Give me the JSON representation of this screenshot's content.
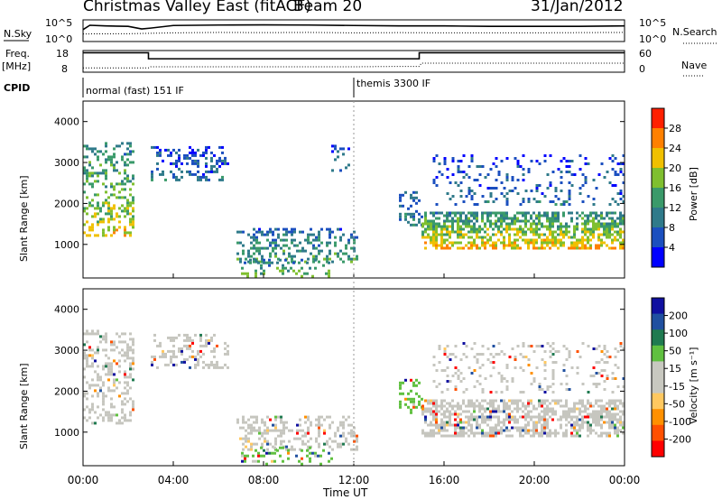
{
  "header": {
    "station": "Christmas Valley East (fitACF)",
    "beam": "Beam 20",
    "date": "31/Jan/2012"
  },
  "colors": {
    "power_scale": [
      "#0000ff",
      "#1b4fbf",
      "#2f7a8a",
      "#3a9a6a",
      "#7fbf2f",
      "#f0c000",
      "#ff8000",
      "#ff2000"
    ],
    "velocity_scale": [
      "#ff0000",
      "#ff5000",
      "#ff9000",
      "#ffc860",
      "#c8c8c0",
      "#c8c8c0",
      "#60c040",
      "#1f7a50",
      "#2050a0",
      "#1010a0"
    ],
    "velocity_ground": "#c6c6bf"
  },
  "chart_data": [
    {
      "type": "line",
      "panel": "noise",
      "left_label": "N.Sky",
      "right_label": "N.Search",
      "left_ticks": [
        "10^5",
        "10^0"
      ],
      "right_ticks": [
        "10^5",
        "10^0"
      ],
      "series": [
        {
          "name": "N.Sky",
          "style": "solid",
          "x": [
            0.0,
            0.3,
            1.0,
            2.0,
            2.6,
            3.0,
            4.0,
            6.0,
            8.0,
            10.0,
            12.0,
            14.0,
            16.0,
            18.0,
            20.0,
            22.0,
            24.0
          ],
          "y": [
            0.55,
            0.75,
            0.72,
            0.7,
            0.58,
            0.62,
            0.74,
            0.76,
            0.77,
            0.76,
            0.74,
            0.72,
            0.72,
            0.7,
            0.7,
            0.7,
            0.72
          ]
        },
        {
          "name": "N.Search",
          "style": "dotted",
          "x": [
            0,
            2,
            4,
            6,
            8,
            10,
            12,
            14,
            16,
            18,
            20,
            22,
            24
          ],
          "y": [
            0.35,
            0.36,
            0.4,
            0.42,
            0.41,
            0.42,
            0.4,
            0.41,
            0.4,
            0.4,
            0.4,
            0.41,
            0.42
          ]
        }
      ]
    },
    {
      "type": "line",
      "panel": "frequency",
      "left_label": "Freq.",
      "left_unit": "[MHz]",
      "right_label": "Nave",
      "left_ticks": [
        "18",
        "8"
      ],
      "right_ticks": [
        "60",
        "0"
      ],
      "series": [
        {
          "name": "Freq.",
          "style": "solid",
          "x": [
            0.0,
            2.9,
            2.9,
            14.9,
            14.9,
            24.0
          ],
          "y": [
            17.0,
            17.0,
            14.2,
            14.2,
            17.0,
            17.0
          ]
        },
        {
          "name": "Nave",
          "style": "dotted",
          "x": [
            0,
            1,
            2,
            2.9,
            3,
            6,
            10,
            12,
            14,
            14.9,
            15,
            18,
            22,
            24
          ],
          "y": [
            12,
            12,
            12,
            12,
            15,
            15,
            15,
            15,
            16,
            16,
            25,
            25,
            25,
            25
          ]
        }
      ],
      "ylim": [
        8,
        18
      ]
    },
    {
      "type": "table",
      "panel": "cpid",
      "label": "CPID",
      "segments": [
        {
          "start": 0.0,
          "text": "normal (fast) 151 IF"
        },
        {
          "start": 12.0,
          "text": "themis 3300 IF"
        }
      ]
    },
    {
      "type": "heatmap",
      "panel": "power",
      "ylabel": "Slant Range [km]",
      "yticks": [
        1000,
        2000,
        3000,
        4000
      ],
      "ylim": [
        180,
        4500
      ],
      "xlim": [
        0,
        24
      ],
      "colorbar_label": "Power [dB]",
      "colorbar_ticks": [
        "28",
        "24",
        "20",
        "16",
        "12",
        "8",
        "4"
      ],
      "regions": [
        {
          "t": [
            0.0,
            2.2
          ],
          "r": [
            1200,
            3500
          ],
          "peak": 20,
          "sparse": 0.35
        },
        {
          "t": [
            3.0,
            6.4
          ],
          "r": [
            2600,
            3400
          ],
          "peak": 8,
          "sparse": 0.3
        },
        {
          "t": [
            6.8,
            12.2
          ],
          "r": [
            600,
            1400
          ],
          "peak": 14,
          "sparse": 0.35
        },
        {
          "t": [
            7.0,
            11.0
          ],
          "r": [
            250,
            650
          ],
          "peak": 16,
          "sparse": 0.25
        },
        {
          "t": [
            11.0,
            11.8
          ],
          "r": [
            2800,
            3500
          ],
          "peak": 8,
          "sparse": 0.2
        },
        {
          "t": [
            14.0,
            15.0
          ],
          "r": [
            1500,
            2300
          ],
          "peak": 10,
          "sparse": 0.35
        },
        {
          "t": [
            15.0,
            24.0
          ],
          "r": [
            900,
            1800
          ],
          "peak": 22,
          "sparse": 0.6
        },
        {
          "t": [
            15.5,
            24.0
          ],
          "r": [
            2000,
            3200
          ],
          "peak": 8,
          "sparse": 0.15
        }
      ]
    },
    {
      "type": "heatmap",
      "panel": "velocity",
      "ylabel": "Slant Range [km]",
      "yticks": [
        1000,
        2000,
        3000,
        4000
      ],
      "ylim": [
        180,
        4500
      ],
      "xlim": [
        0,
        24
      ],
      "colorbar_label": "Velocity [m s⁻¹]",
      "colorbar_ticks": [
        "200",
        "100",
        "50",
        "15",
        "-15",
        "-50",
        "-100",
        "-200"
      ],
      "xticks": [
        "00:00",
        "04:00",
        "08:00",
        "12:00",
        "16:00",
        "20:00",
        "00:00"
      ],
      "xlabel": "Time UT",
      "regions": [
        {
          "t": [
            0.0,
            2.2
          ],
          "r": [
            1200,
            3500
          ],
          "vel": 0,
          "sparse": 0.35
        },
        {
          "t": [
            3.0,
            6.4
          ],
          "r": [
            2600,
            3400
          ],
          "vel": 0,
          "sparse": 0.3
        },
        {
          "t": [
            6.8,
            12.2
          ],
          "r": [
            600,
            1400
          ],
          "vel": 0,
          "sparse": 0.35
        },
        {
          "t": [
            7.0,
            11.0
          ],
          "r": [
            250,
            650
          ],
          "vel": 40,
          "sparse": 0.25
        },
        {
          "t": [
            14.0,
            15.0
          ],
          "r": [
            1500,
            2300
          ],
          "vel": 40,
          "sparse": 0.35
        },
        {
          "t": [
            15.0,
            24.0
          ],
          "r": [
            900,
            1800
          ],
          "vel": 0,
          "sparse": 0.6
        },
        {
          "t": [
            15.5,
            24.0
          ],
          "r": [
            2000,
            3200
          ],
          "vel": 0,
          "sparse": 0.15
        }
      ]
    }
  ]
}
